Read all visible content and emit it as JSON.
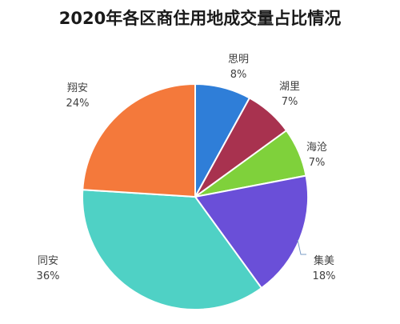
{
  "chart_data": {
    "type": "pie",
    "title": "2020年各区商住用地成交量占比情况",
    "slices": [
      {
        "name": "思明",
        "value": 8,
        "label": "8%",
        "color": "#2f7ed8"
      },
      {
        "name": "湖里",
        "value": 7,
        "label": "7%",
        "color": "#a8324f"
      },
      {
        "name": "海沧",
        "value": 7,
        "label": "7%",
        "color": "#7fd13b"
      },
      {
        "name": "集美",
        "value": 18,
        "label": "18%",
        "color": "#6a4fd8"
      },
      {
        "name": "同安",
        "value": 36,
        "label": "36%",
        "color": "#4fd1c5"
      },
      {
        "name": "翔安",
        "value": 24,
        "label": "24%",
        "color": "#f4793b"
      }
    ],
    "start": "12 o'clock",
    "direction": "clockwise"
  }
}
